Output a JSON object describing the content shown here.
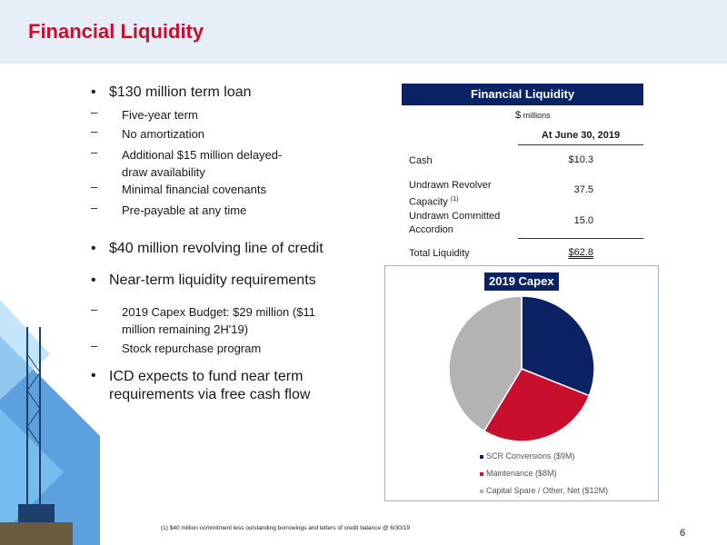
{
  "title": "Financial Liquidity",
  "bullets": {
    "term_loan": "$130 million term loan",
    "term_loan_subs": [
      "Five-year term",
      "No amortization",
      "Additional $15 million delayed-draw availability",
      "Minimal financial covenants",
      "Pre-payable at any time"
    ],
    "revolver": "$40 million revolving line of credit",
    "liquidity_req": "Near-term liquidity requirements",
    "liquidity_subs": [
      "2019 Capex Budget:  $29 million ($11 million remaining 2H'19)",
      "Stock repurchase program"
    ],
    "fund": "ICD expects to fund near term requirements via free cash flow"
  },
  "table": {
    "header": "Financial Liquidity",
    "units_symbol": "$",
    "units_word": "millions",
    "date_header": "At June 30, 2019",
    "rows": [
      {
        "label": "Cash",
        "value": "$10.3"
      },
      {
        "label": "Undrawn Revolver Capacity",
        "note": "(1)",
        "value": "37.5"
      },
      {
        "label": "Undrawn Committed Accordion",
        "value": "15.0"
      },
      {
        "label": "Total Liquidity",
        "value": "$62.8"
      }
    ]
  },
  "chart_data": {
    "type": "pie",
    "title": "2019 Capex",
    "slices": [
      {
        "label": "SCR Conversions ($9M)",
        "value": 9,
        "color": "#0b2265"
      },
      {
        "label": "Maintenance ($8M)",
        "value": 8,
        "color": "#c8102e"
      },
      {
        "label": "Capital Spare / Other, Net ($12M)",
        "value": 12,
        "color": "#b3b3b3"
      }
    ],
    "legend_position": "bottom"
  },
  "footnote": "(1)  $40 million commitment less outstanding borrowings and letters of credit balance @ 6/30/19",
  "page_number": "6"
}
